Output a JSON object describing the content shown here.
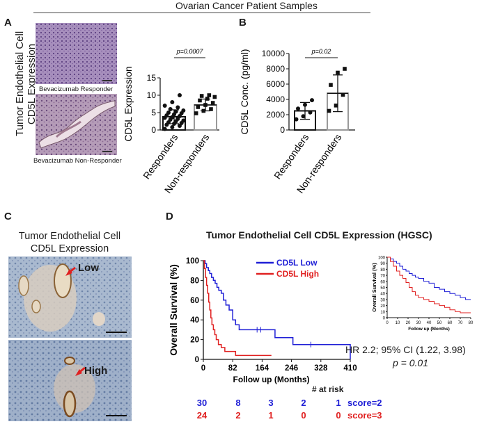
{
  "header": {
    "title": "Ovarian Cancer Patient Samples"
  },
  "panels": {
    "a": {
      "letter": "A",
      "side_label_line1": "Tumor Endothelial Cell",
      "side_label_line2": "CD5L Expression",
      "image_top_caption": "Bevacizumab Responder",
      "image_bottom_caption": "Bevacizumab Non-Responder"
    },
    "b": {
      "letter": "B"
    },
    "c": {
      "letter": "C",
      "title_line1": "Tumor Endothelial Cell",
      "title_line2": "CD5L Expression",
      "label_low": "Low",
      "label_high": "High"
    },
    "d": {
      "letter": "D",
      "title": "Tumor Endothelial Cell CD5L Expression (HGSC)",
      "hr_text": "HR 2.2; 95% CI (1.22, 3.98)",
      "p_text": "p = 0.01",
      "at_risk_label": "# at risk",
      "at_risk": [
        {
          "label": "score=2",
          "color": "#1f1fd6",
          "values": [
            "30",
            "8",
            "3",
            "2",
            "1"
          ]
        },
        {
          "label": "score=3",
          "color": "#e02020",
          "values": [
            "24",
            "2",
            "1",
            "0",
            "0"
          ]
        }
      ]
    }
  },
  "colors": {
    "blue": "#1f1fd6",
    "red": "#e02020",
    "grey_bar": "#9a9a9a"
  },
  "chart_data": [
    {
      "type": "bar",
      "categories": [
        "Responders",
        "Non-responders"
      ],
      "values": [
        3.8,
        7.2
      ],
      "errors": [
        2.0,
        1.7
      ],
      "points": [
        [
          0.3,
          0.8,
          1.2,
          1.5,
          1.8,
          2.0,
          2.2,
          2.5,
          2.7,
          3.0,
          3.2,
          3.5,
          3.7,
          4.0,
          4.2,
          4.5,
          4.8,
          5.0,
          5.3,
          5.6,
          6.0,
          6.5,
          7.0,
          8.0,
          10.0
        ],
        [
          4.8,
          5.5,
          6.0,
          6.6,
          7.2,
          7.8,
          8.5,
          9.0,
          9.5,
          9.8,
          10.0
        ]
      ],
      "ylabel": "CD5L Expression",
      "ylim": [
        0,
        15
      ],
      "yticks": [
        0,
        5,
        10,
        15
      ],
      "annotation": "p=0.0007"
    },
    {
      "type": "bar",
      "categories": [
        "Responders",
        "Non-responders"
      ],
      "values": [
        2500,
        4800
      ],
      "errors": [
        1100,
        2400
      ],
      "points": [
        [
          1400,
          1800,
          2300,
          2800,
          3300,
          3900
        ],
        [
          2500,
          3200,
          4600,
          5900,
          7500,
          8000
        ]
      ],
      "ylabel": "CD5L Conc. (pg/ml)",
      "ylim": [
        0,
        10000
      ],
      "yticks": [
        0,
        2000,
        4000,
        6000,
        8000,
        10000
      ],
      "annotation": "p=0.02"
    },
    {
      "type": "line",
      "title": "Tumor Endothelial Cell CD5L Expression (HGSC)",
      "xlabel": "Follow up (Months)",
      "ylabel": "Overall Survival (%)",
      "xlim": [
        0,
        410
      ],
      "ylim": [
        0,
        100
      ],
      "xticks": [
        0,
        82,
        164,
        246,
        328,
        410
      ],
      "yticks": [
        0,
        20,
        40,
        60,
        80,
        100
      ],
      "legend": "top-right",
      "series": [
        {
          "name": "CD5L Low",
          "color": "#1f1fd6",
          "x": [
            0,
            5,
            9,
            14,
            18,
            23,
            28,
            33,
            38,
            43,
            50,
            56,
            63,
            72,
            82,
            90,
            100,
            120,
            145,
            165,
            200,
            250,
            300,
            320,
            410
          ],
          "y": [
            100,
            97,
            93,
            90,
            87,
            83,
            80,
            77,
            73,
            70,
            67,
            60,
            55,
            50,
            40,
            35,
            30,
            30,
            30,
            30,
            22,
            15,
            15,
            15,
            0
          ]
        },
        {
          "name": "CD5L High",
          "color": "#e02020",
          "x": [
            0,
            3,
            6,
            9,
            12,
            15,
            18,
            21,
            24,
            28,
            32,
            36,
            42,
            50,
            60,
            75,
            90,
            120,
            190
          ],
          "y": [
            100,
            92,
            83,
            75,
            67,
            58,
            50,
            42,
            35,
            30,
            25,
            20,
            15,
            12,
            8,
            8,
            4,
            4,
            4
          ]
        }
      ]
    },
    {
      "type": "line",
      "xlabel": "Follow up (Months)",
      "ylabel": "Overall Survival (%)",
      "xlim": [
        0,
        80
      ],
      "ylim": [
        0,
        100
      ],
      "xticks": [
        0,
        10,
        20,
        30,
        40,
        50,
        60,
        70,
        80
      ],
      "yticks": [
        0,
        10,
        20,
        30,
        40,
        50,
        60,
        70,
        80,
        90,
        100
      ],
      "series": [
        {
          "color": "#1f1fd6",
          "x": [
            0,
            3,
            6,
            9,
            12,
            15,
            18,
            21,
            24,
            27,
            30,
            35,
            40,
            45,
            50,
            55,
            60,
            65,
            70,
            75,
            80
          ],
          "y": [
            100,
            97,
            93,
            90,
            85,
            80,
            77,
            73,
            70,
            67,
            65,
            60,
            57,
            50,
            47,
            43,
            40,
            37,
            33,
            30,
            30
          ]
        },
        {
          "color": "#e02020",
          "x": [
            0,
            3,
            6,
            9,
            12,
            15,
            18,
            21,
            24,
            27,
            30,
            35,
            40,
            45,
            50,
            55,
            60,
            65,
            70,
            80
          ],
          "y": [
            100,
            93,
            85,
            77,
            70,
            65,
            58,
            50,
            43,
            37,
            33,
            30,
            27,
            23,
            20,
            17,
            13,
            10,
            8,
            8
          ]
        }
      ]
    }
  ]
}
